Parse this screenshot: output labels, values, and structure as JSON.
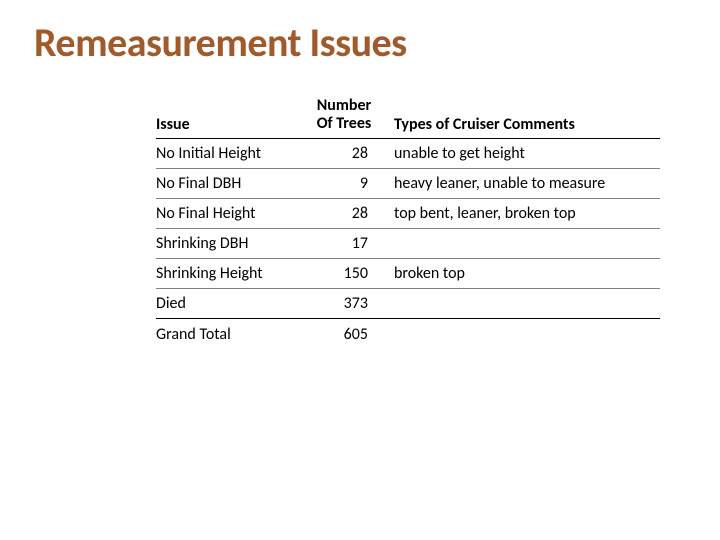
{
  "title": "Remeasurement Issues",
  "table": {
    "columns": {
      "issue": "Issue",
      "number_line1": "Number",
      "number_line2": "Of Trees",
      "comments": "Types of Cruiser Comments"
    },
    "rows": [
      {
        "issue": "No Initial Height",
        "number": "28",
        "comments": "unable to get height"
      },
      {
        "issue": "No Final DBH",
        "number": "9",
        "comments": "heavy leaner, unable to measure"
      },
      {
        "issue": "No Final Height",
        "number": "28",
        "comments": "top bent, leaner, broken top"
      },
      {
        "issue": "Shrinking DBH",
        "number": "17",
        "comments": ""
      },
      {
        "issue": "Shrinking Height",
        "number": "150",
        "comments": "broken top"
      },
      {
        "issue": "Died",
        "number": "373",
        "comments": ""
      }
    ],
    "total": {
      "issue": "Grand Total",
      "number": "605",
      "comments": ""
    }
  },
  "style": {
    "title_color": "#a05a2c",
    "title_fontsize": 40,
    "body_fontsize": 16,
    "header_border_color": "#000000",
    "row_border_color": "#808080",
    "background_color": "#ffffff",
    "col_widths": {
      "issue": 148,
      "number": 90
    }
  },
  "footer": ""
}
